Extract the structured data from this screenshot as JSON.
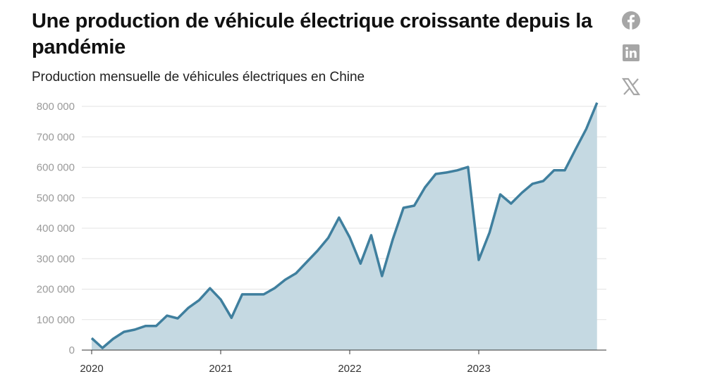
{
  "title": "Une production de véhicule électrique croissante depuis la pandémie",
  "subtitle": "Production mensuelle de véhicules électriques en Chine",
  "share": [
    {
      "icon": "facebook-icon"
    },
    {
      "icon": "linkedin-icon"
    },
    {
      "icon": "x-icon"
    }
  ],
  "colors": {
    "line": "#3f7f9e",
    "area": "#c5d9e2",
    "icons": "#a6a6a6"
  },
  "chart_data": {
    "type": "area",
    "title": "",
    "xlabel": "",
    "ylabel": "",
    "ylim": [
      0,
      800000
    ],
    "yticks": [
      0,
      100000,
      200000,
      300000,
      400000,
      500000,
      600000,
      700000,
      800000
    ],
    "ytick_labels": [
      "0",
      "100 000",
      "200 000",
      "300 000",
      "400 000",
      "500 000",
      "600 000",
      "700 000",
      "800 000"
    ],
    "xtick_labels": [
      "2020",
      "2021",
      "2022",
      "2023"
    ],
    "grid": "horizontal",
    "x_start": "2020-01",
    "x": [
      "2020-01",
      "2020-02",
      "2020-03",
      "2020-04",
      "2020-05",
      "2020-06",
      "2020-07",
      "2020-08",
      "2020-09",
      "2020-10",
      "2020-11",
      "2020-12",
      "2021-01",
      "2021-02",
      "2021-03",
      "2021-04",
      "2021-05",
      "2021-06",
      "2021-07",
      "2021-08",
      "2021-09",
      "2021-10",
      "2021-11",
      "2021-12",
      "2022-01",
      "2022-02",
      "2022-03",
      "2022-04",
      "2022-05",
      "2022-06",
      "2022-07",
      "2022-08",
      "2022-09",
      "2022-10",
      "2022-11",
      "2022-12",
      "2023-01",
      "2023-02",
      "2023-03",
      "2023-04",
      "2023-05",
      "2023-06",
      "2023-07",
      "2023-08",
      "2023-09",
      "2023-10",
      "2023-11",
      "2023-12"
    ],
    "values": [
      39000,
      7000,
      37000,
      60000,
      67000,
      79000,
      79000,
      113000,
      104000,
      139000,
      164000,
      203000,
      166000,
      106000,
      183000,
      183000,
      183000,
      203000,
      231000,
      252000,
      289000,
      326000,
      368000,
      435000,
      370000,
      284000,
      377000,
      243000,
      363000,
      467000,
      474000,
      534000,
      578000,
      583000,
      590000,
      601000,
      296000,
      386000,
      511000,
      481000,
      516000,
      546000,
      555000,
      590000,
      590000,
      659000,
      726000,
      812000
    ]
  }
}
